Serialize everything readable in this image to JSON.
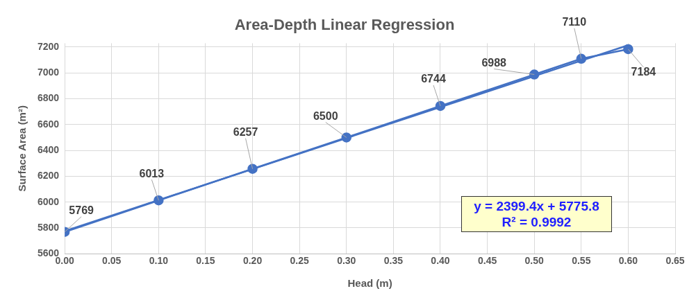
{
  "chart_data": {
    "type": "line",
    "title": "Area-Depth Linear Regression",
    "xlabel": "Head (m)",
    "ylabel": "Surface Area (m²)",
    "x": [
      0,
      0.1,
      0.2,
      0.3,
      0.4,
      0.5,
      0.55,
      0.6
    ],
    "series": [
      {
        "color": "#4472c4",
        "values": [
          5769,
          6013,
          6257,
          6500,
          6744,
          6988,
          7110,
          7184
        ],
        "marker": "circle",
        "data_labels": true
      },
      {
        "type": "line",
        "color": "#4472c4",
        "x": [
          0,
          0.6
        ],
        "values": [
          5776,
          7215
        ],
        "marker": "none"
      }
    ],
    "xlim": [
      0,
      0.65
    ],
    "xticks": [
      {
        "value": 0,
        "label": "0.00"
      },
      {
        "value": 0.05,
        "label": "0.05"
      },
      {
        "value": 0.1,
        "label": "0.10"
      },
      {
        "value": 0.15,
        "label": "0.15"
      },
      {
        "value": 0.2,
        "label": "0.20"
      },
      {
        "value": 0.25,
        "label": "0.25"
      },
      {
        "value": 0.3,
        "label": "0.30"
      },
      {
        "value": 0.35,
        "label": "0.35"
      },
      {
        "value": 0.4,
        "label": "0.40"
      },
      {
        "value": 0.45,
        "label": "0.45"
      },
      {
        "value": 0.5,
        "label": "0.50"
      },
      {
        "value": 0.55,
        "label": "0.55"
      },
      {
        "value": 0.6,
        "label": "0.60"
      },
      {
        "value": 0.65,
        "label": "0.65"
      }
    ],
    "ylim": [
      5600,
      7230
    ],
    "yticks": [
      5600,
      5800,
      6000,
      6200,
      6400,
      6600,
      6800,
      7000,
      7200
    ],
    "grid": true,
    "legend": false,
    "line_style": "solid",
    "annotations": [
      "y = 2399.4x + 5775.8",
      "R² = 0.9992"
    ]
  }
}
